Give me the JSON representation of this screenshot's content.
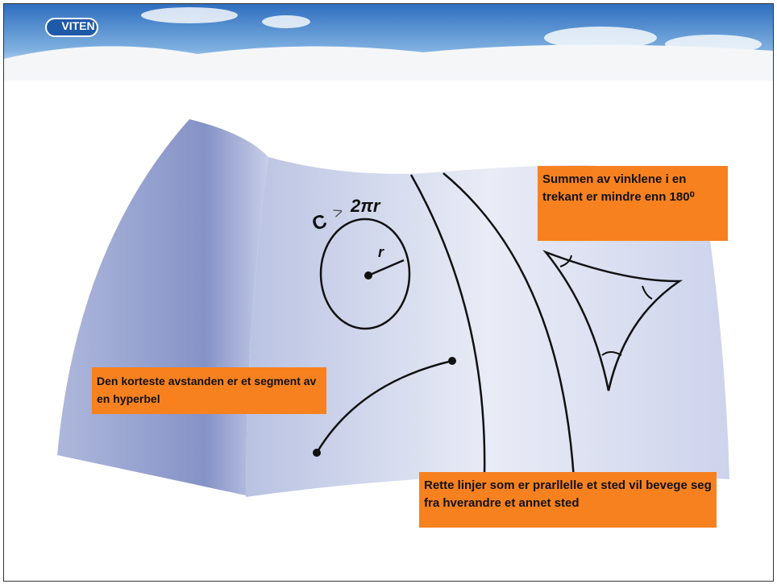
{
  "header": {
    "logo": "VITEN"
  },
  "circle_label": {
    "c": "C",
    "relation": ">",
    "value": "2πr",
    "radius": "r"
  },
  "boxes": [
    "Summen av vinklene i en trekant er mindre enn 180⁰",
    "Den korteste avstanden er et segment av en hyperbel",
    "Rette linjer som er prarllelle et sted vil bevege seg fra hverandre et annet sted"
  ]
}
